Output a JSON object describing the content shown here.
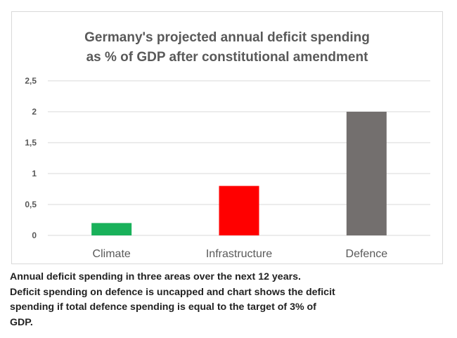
{
  "chart_data": {
    "type": "bar",
    "title_lines": [
      "Germany's projected annual deficit spending",
      "as % of GDP after constitutional amendment"
    ],
    "categories": [
      "Climate",
      "Infrastructure",
      "Defence"
    ],
    "values": [
      0.2,
      0.8,
      2.0
    ],
    "colors": [
      "#19b15a",
      "#ff0000",
      "#736f6e"
    ],
    "ylim": [
      0,
      2.5
    ],
    "yticks": [
      0,
      0.5,
      1,
      1.5,
      2,
      2.5
    ],
    "ytick_labels": [
      "0",
      "0,5",
      "1",
      "1,5",
      "2",
      "2,5"
    ],
    "grid": true,
    "xlabel": "",
    "ylabel": ""
  },
  "caption_lines": [
    "Annual deficit spending in three areas over the next 12 years.",
    "Deficit spending on defence is uncapped and chart shows the deficit",
    "spending if total defence spending is equal to the target of 3% of",
    "GDP."
  ]
}
